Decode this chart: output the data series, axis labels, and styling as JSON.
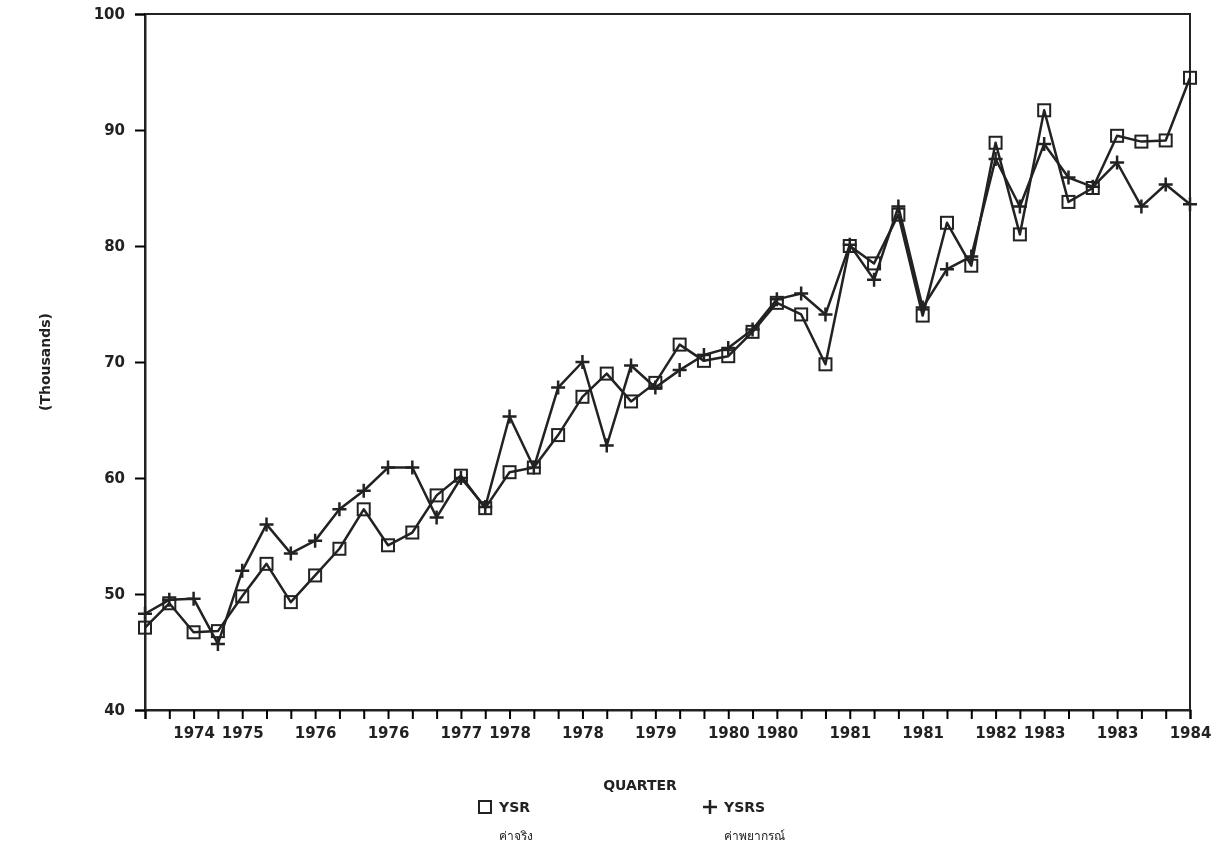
{
  "chart_data": {
    "type": "line",
    "xlabel": "QUARTER",
    "ylabel": "(Thousands)",
    "categories": [
      null,
      null,
      "1974",
      null,
      "1975",
      null,
      null,
      "1976",
      null,
      null,
      "1976",
      null,
      null,
      "1977",
      null,
      "1978",
      null,
      null,
      "1978",
      null,
      null,
      "1979",
      null,
      null,
      "1980",
      null,
      "1980",
      null,
      null,
      "1981",
      null,
      null,
      "1981",
      null,
      null,
      "1982",
      null,
      "1983",
      null,
      null,
      "1983",
      null,
      null,
      "1984"
    ],
    "ylim": [
      40,
      100
    ],
    "yticks": [
      40,
      50,
      60,
      70,
      80,
      90,
      100
    ],
    "grid": false,
    "legend": "bottom",
    "series": [
      {
        "name": "YSR",
        "color": "#222222",
        "marker": "square",
        "values": [
          47.1,
          49.2,
          46.7,
          46.8,
          49.8,
          52.6,
          49.3,
          51.6,
          53.9,
          57.3,
          54.2,
          55.3,
          58.5,
          60.2,
          57.4,
          60.5,
          60.9,
          63.7,
          67.0,
          69.0,
          66.6,
          68.2,
          71.5,
          70.1,
          70.5,
          72.6,
          75.1,
          74.1,
          69.8,
          80.0,
          78.5,
          82.7,
          74.0,
          82.0,
          78.3,
          88.9,
          81.0,
          91.7,
          83.8,
          85.0,
          89.5,
          89.0,
          89.1,
          94.5
        ]
      },
      {
        "name": "YSRS",
        "color": "#222222",
        "marker": "cross",
        "values": [
          48.3,
          49.5,
          49.6,
          45.7,
          52.0,
          56.0,
          53.5,
          54.6,
          57.3,
          58.9,
          60.9,
          60.9,
          56.6,
          60.0,
          57.5,
          65.3,
          60.9,
          67.8,
          70.0,
          62.8,
          69.7,
          67.8,
          69.3,
          70.6,
          71.2,
          72.8,
          75.4,
          75.9,
          74.1,
          80.1,
          77.1,
          83.4,
          74.7,
          78.0,
          79.1,
          87.5,
          83.4,
          88.8,
          85.9,
          85.1,
          87.2,
          83.4,
          85.3,
          83.6
        ]
      }
    ],
    "annotations": [
      "ค่าจริง",
      "ค่าพยากรณ์"
    ]
  }
}
